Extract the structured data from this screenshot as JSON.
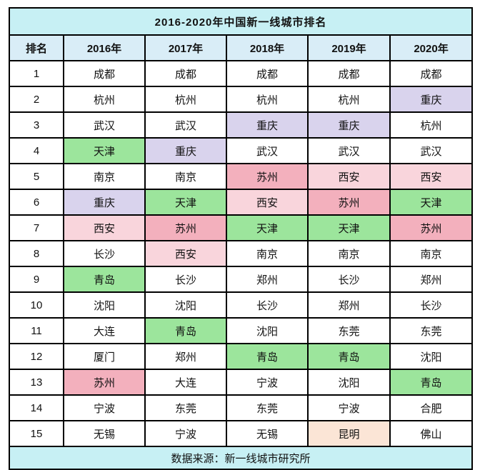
{
  "title": "2016-2020年中国新一线城市排名",
  "footer": "数据来源：新一线城市研究所",
  "colors": {
    "title_bg": "#c7f0f4",
    "header_bg": "#d9edf7",
    "footer_bg": "#c7f0f4",
    "border": "#000000",
    "text": "#111111",
    "highlight_green": "#9ce59c",
    "highlight_purple": "#d9d3ed",
    "highlight_pink": "#f3b0bd",
    "highlight_lightpink": "#f9d5dc",
    "highlight_peach": "#fbe5d6"
  },
  "chart_data": {
    "type": "table",
    "title": "2016-2020年中国新一线城市排名",
    "source": "数据来源：新一线城市研究所",
    "columns": [
      "排名",
      "2016年",
      "2017年",
      "2018年",
      "2019年",
      "2020年"
    ],
    "rows": [
      {
        "rank": "1",
        "cities": [
          "成都",
          "成都",
          "成都",
          "成都",
          "成都"
        ],
        "highlights": [
          "",
          "",
          "",
          "",
          ""
        ]
      },
      {
        "rank": "2",
        "cities": [
          "杭州",
          "杭州",
          "杭州",
          "杭州",
          "重庆"
        ],
        "highlights": [
          "",
          "",
          "",
          "",
          "purple"
        ]
      },
      {
        "rank": "3",
        "cities": [
          "武汉",
          "武汉",
          "重庆",
          "重庆",
          "杭州"
        ],
        "highlights": [
          "",
          "",
          "purple",
          "purple",
          ""
        ]
      },
      {
        "rank": "4",
        "cities": [
          "天津",
          "重庆",
          "武汉",
          "武汉",
          "武汉"
        ],
        "highlights": [
          "green",
          "purple",
          "",
          "",
          ""
        ]
      },
      {
        "rank": "5",
        "cities": [
          "南京",
          "南京",
          "苏州",
          "西安",
          "西安"
        ],
        "highlights": [
          "",
          "",
          "pink",
          "lightpink",
          "lightpink"
        ]
      },
      {
        "rank": "6",
        "cities": [
          "重庆",
          "天津",
          "西安",
          "苏州",
          "天津"
        ],
        "highlights": [
          "purple",
          "green",
          "lightpink",
          "pink",
          "green"
        ]
      },
      {
        "rank": "7",
        "cities": [
          "西安",
          "苏州",
          "天津",
          "天津",
          "苏州"
        ],
        "highlights": [
          "lightpink",
          "pink",
          "green",
          "green",
          "pink"
        ]
      },
      {
        "rank": "8",
        "cities": [
          "长沙",
          "西安",
          "南京",
          "南京",
          "南京"
        ],
        "highlights": [
          "",
          "lightpink",
          "",
          "",
          ""
        ]
      },
      {
        "rank": "9",
        "cities": [
          "青岛",
          "长沙",
          "郑州",
          "长沙",
          "郑州"
        ],
        "highlights": [
          "green",
          "",
          "",
          "",
          ""
        ]
      },
      {
        "rank": "10",
        "cities": [
          "沈阳",
          "沈阳",
          "长沙",
          "郑州",
          "长沙"
        ],
        "highlights": [
          "",
          "",
          "",
          "",
          ""
        ]
      },
      {
        "rank": "11",
        "cities": [
          "大连",
          "青岛",
          "沈阳",
          "东莞",
          "东莞"
        ],
        "highlights": [
          "",
          "green",
          "",
          "",
          ""
        ]
      },
      {
        "rank": "12",
        "cities": [
          "厦门",
          "郑州",
          "青岛",
          "青岛",
          "沈阳"
        ],
        "highlights": [
          "",
          "",
          "green",
          "green",
          ""
        ]
      },
      {
        "rank": "13",
        "cities": [
          "苏州",
          "大连",
          "宁波",
          "沈阳",
          "青岛"
        ],
        "highlights": [
          "pink",
          "",
          "",
          "",
          "green"
        ]
      },
      {
        "rank": "14",
        "cities": [
          "宁波",
          "东莞",
          "东莞",
          "宁波",
          "合肥"
        ],
        "highlights": [
          "",
          "",
          "",
          "",
          ""
        ]
      },
      {
        "rank": "15",
        "cities": [
          "无锡",
          "宁波",
          "无锡",
          "昆明",
          "佛山"
        ],
        "highlights": [
          "",
          "",
          "",
          "peach",
          ""
        ]
      }
    ]
  }
}
